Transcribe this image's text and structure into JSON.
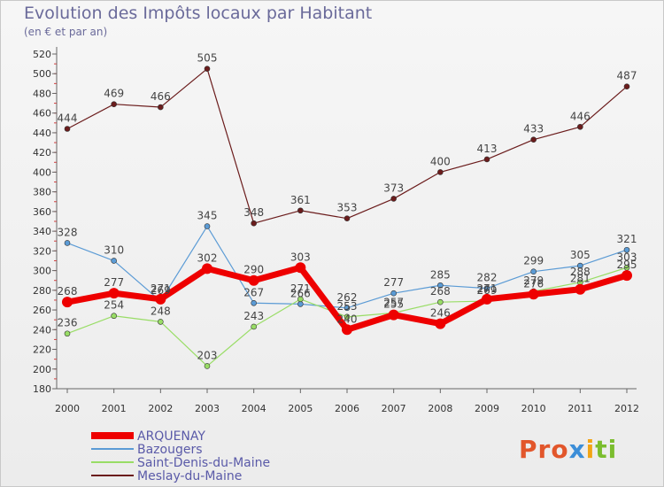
{
  "title": "Evolution des Impôts locaux par Habitant",
  "subtitle": "(en € et par an)",
  "logo": {
    "part1": "Pro",
    "part2": "x",
    "part3": "i",
    "part4": "ti"
  },
  "chart_data": {
    "type": "line",
    "title": "Evolution des Impôts locaux par Habitant",
    "ylabel": "(en € et par an)",
    "categories": [
      "2000",
      "2001",
      "2002",
      "2003",
      "2004",
      "2005",
      "2006",
      "2007",
      "2008",
      "2009",
      "2010",
      "2011",
      "2012"
    ],
    "ylim": [
      180,
      520
    ],
    "yticks": [
      180,
      200,
      220,
      240,
      260,
      280,
      300,
      320,
      340,
      360,
      380,
      400,
      420,
      440,
      460,
      480,
      500,
      520
    ],
    "ytick_labels": [
      "180",
      "200",
      "220",
      "240",
      "260",
      "280",
      "300",
      "320",
      "340",
      "360",
      "380",
      "400",
      "420",
      "440",
      "460",
      "480",
      "500",
      "520"
    ],
    "series": [
      {
        "name": "Meslay-du-Maine",
        "color": "#6b1c1c",
        "values": [
          444,
          469,
          466,
          505,
          348,
          361,
          353,
          373,
          400,
          413,
          433,
          446,
          487
        ],
        "labels": [
          "444",
          "469",
          "466",
          "505",
          "348",
          "361",
          "353",
          "373",
          "400",
          "413",
          "433",
          "446",
          "487"
        ]
      },
      {
        "name": "Bazougers",
        "color": "#5b9bd5",
        "values": [
          328,
          310,
          269,
          345,
          267,
          266,
          262,
          277,
          285,
          282,
          299,
          305,
          321
        ],
        "labels": [
          "328",
          "310",
          "269",
          "345",
          "267",
          "266",
          "262",
          "277",
          "285",
          "282",
          "299",
          "305",
          "321"
        ]
      },
      {
        "name": "Saint-Denis-du-Maine",
        "color": "#99dd66",
        "values": [
          236,
          254,
          248,
          203,
          243,
          271,
          253,
          257,
          268,
          269,
          279,
          288,
          303
        ],
        "labels": [
          "236",
          "254",
          "248",
          "203",
          "243",
          "271",
          "253",
          "257",
          "268",
          "269",
          "279",
          "288",
          "303"
        ]
      },
      {
        "name": "ARQUENAY",
        "color": "#ee0000",
        "values": [
          268,
          277,
          271,
          302,
          290,
          303,
          240,
          255,
          246,
          271,
          276,
          281,
          295
        ],
        "labels": [
          "268",
          "277",
          "271",
          "302",
          "290",
          "303",
          "240",
          "255",
          "246",
          "271",
          "276",
          "281",
          "295"
        ]
      }
    ],
    "legend": [
      {
        "name": "ARQUENAY",
        "color": "#ee0000"
      },
      {
        "name": "Bazougers",
        "color": "#5b9bd5"
      },
      {
        "name": "Saint-Denis-du-Maine",
        "color": "#99dd66"
      },
      {
        "name": "Meslay-du-Maine",
        "color": "#6b1c1c"
      }
    ],
    "legend_position": "bottom-left",
    "grid": false
  }
}
